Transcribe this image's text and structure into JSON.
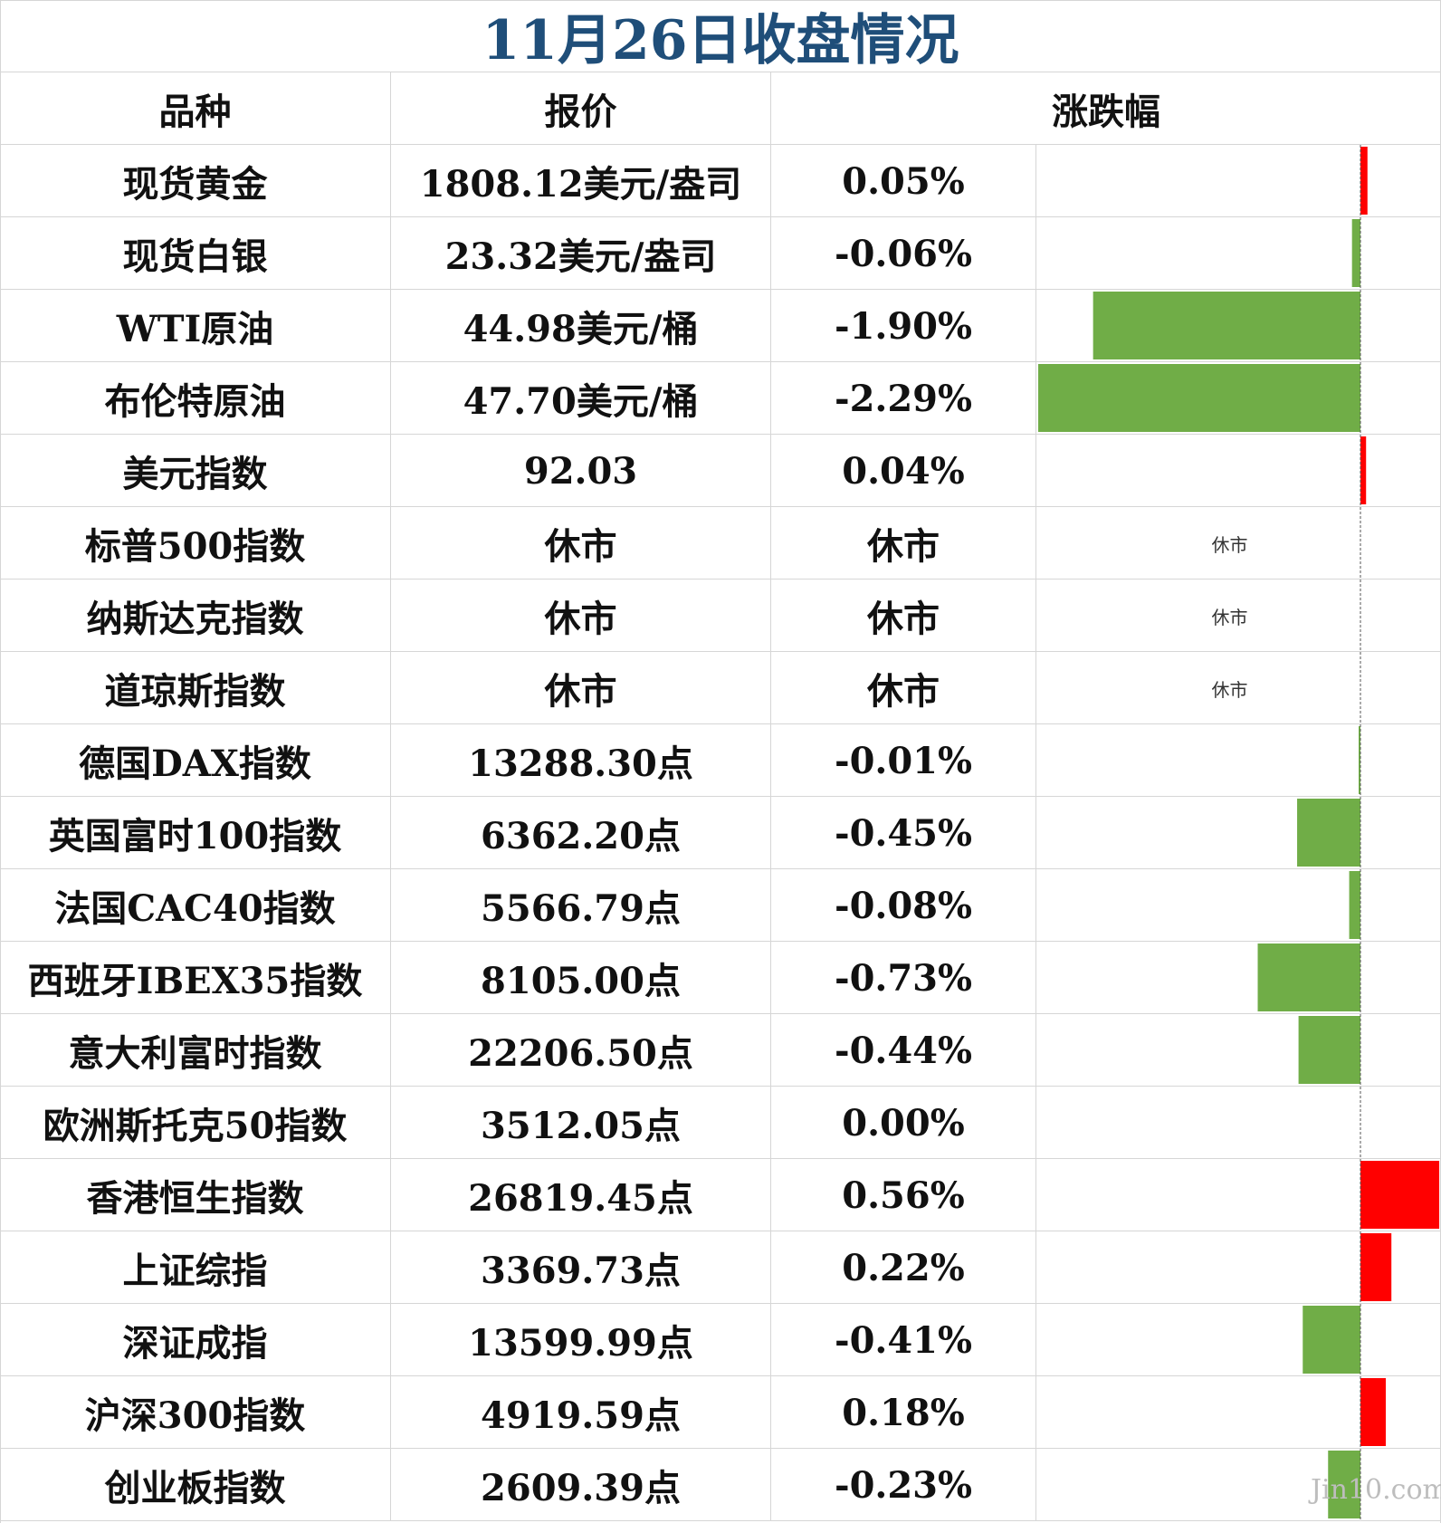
{
  "title": "11月26日收盘情况",
  "headers": {
    "name": "品种",
    "price": "报价",
    "change": "涨跌幅"
  },
  "closed_label": "休市",
  "colors": {
    "up": "#ff0000",
    "down": "#70ad47",
    "title": "#1f4e79"
  },
  "watermark": "Jin10.com",
  "rows": [
    {
      "name": "现货黄金",
      "price": "1808.12美元/盎司",
      "change": "0.05%"
    },
    {
      "name": "现货白银",
      "price": "23.32美元/盎司",
      "change": "-0.06%"
    },
    {
      "name": "WTI原油",
      "price": "44.98美元/桶",
      "change": "-1.90%"
    },
    {
      "name": "布伦特原油",
      "price": "47.70美元/桶",
      "change": "-2.29%"
    },
    {
      "name": "美元指数",
      "price": "92.03",
      "change": "0.04%"
    },
    {
      "name": "标普500指数",
      "price": "休市",
      "change": "休市",
      "bar_text": "休市"
    },
    {
      "name": "纳斯达克指数",
      "price": "休市",
      "change": "休市",
      "bar_text": "休市"
    },
    {
      "name": "道琼斯指数",
      "price": "休市",
      "change": "休市",
      "bar_text": "休市"
    },
    {
      "name": "德国DAX指数",
      "price": "13288.30点",
      "change": "-0.01%"
    },
    {
      "name": "英国富时100指数",
      "price": "6362.20点",
      "change": "-0.45%"
    },
    {
      "name": "法国CAC40指数",
      "price": "5566.79点",
      "change": "-0.08%"
    },
    {
      "name": "西班牙IBEX35指数",
      "price": "8105.00点",
      "change": "-0.73%"
    },
    {
      "name": "意大利富时指数",
      "price": "22206.50点",
      "change": "-0.44%"
    },
    {
      "name": "欧洲斯托克50指数",
      "price": "3512.05点",
      "change": "0.00%"
    },
    {
      "name": "香港恒生指数",
      "price": "26819.45点",
      "change": "0.56%"
    },
    {
      "name": "上证综指",
      "price": "3369.73点",
      "change": "0.22%"
    },
    {
      "name": "深证成指",
      "price": "13599.99点",
      "change": "-0.41%"
    },
    {
      "name": "沪深300指数",
      "price": "4919.59点",
      "change": "0.18%"
    },
    {
      "name": "创业板指数",
      "price": "2609.39点",
      "change": "-0.23%"
    }
  ],
  "chart_data": {
    "type": "bar",
    "orientation": "horizontal",
    "categories": [
      "现货黄金",
      "现货白银",
      "WTI原油",
      "布伦特原油",
      "美元指数",
      "标普500指数",
      "纳斯达克指数",
      "道琼斯指数",
      "德国DAX指数",
      "英国富时100指数",
      "法国CAC40指数",
      "西班牙IBEX35指数",
      "意大利富时指数",
      "欧洲斯托克50指数",
      "香港恒生指数",
      "上证综指",
      "深证成指",
      "沪深300指数",
      "创业板指数"
    ],
    "values": [
      0.05,
      -0.06,
      -1.9,
      -2.29,
      0.04,
      null,
      null,
      null,
      -0.01,
      -0.45,
      -0.08,
      -0.73,
      -0.44,
      0.0,
      0.56,
      0.22,
      -0.41,
      0.18,
      -0.23
    ],
    "unit": "%",
    "xlim": [
      -2.29,
      0.56
    ],
    "zero_line": "dashed"
  }
}
